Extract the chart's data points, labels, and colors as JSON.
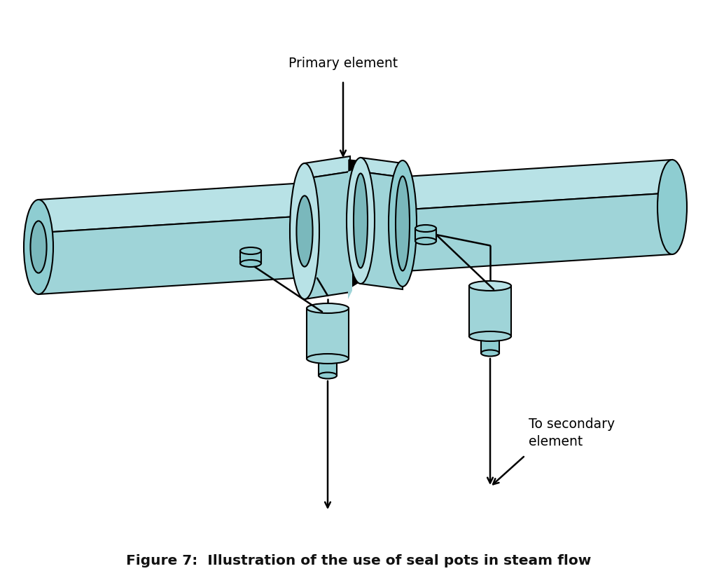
{
  "title": "Figure 7:  Illustration of the use of seal pots in steam flow",
  "title_fontsize": 14.5,
  "primary_element_label": "Primary element",
  "secondary_element_label": "To secondary\nelement",
  "pipe_color": "#9fd4d8",
  "pipe_top_color": "#b8e2e6",
  "pipe_dark_color": "#7ab8bc",
  "pipe_mid_color": "#8ecdd1",
  "background_color": "#ffffff",
  "black": "#000000",
  "label_fontsize": 13.5,
  "lw": 1.5
}
